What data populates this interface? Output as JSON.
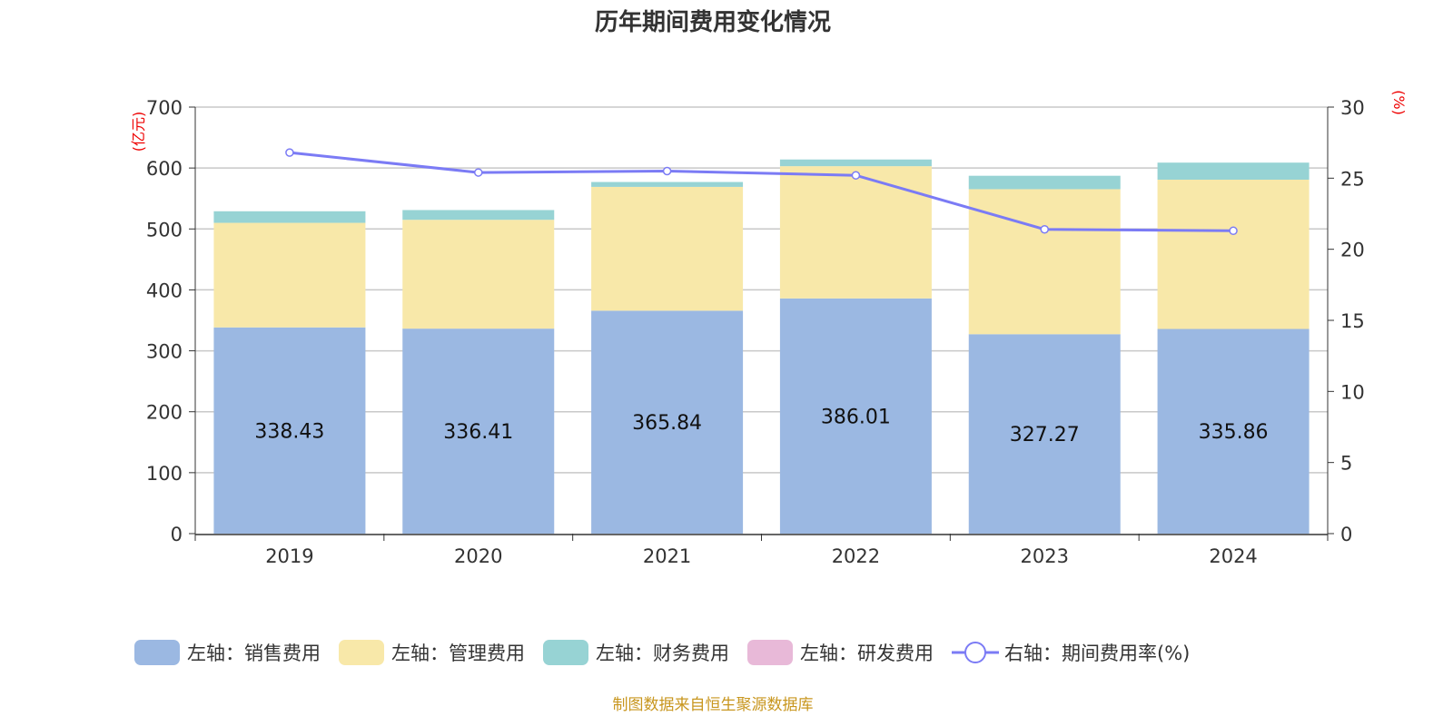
{
  "chart_data": {
    "type": "bar",
    "title": "历年期间费用变化情况",
    "categories": [
      "2019",
      "2020",
      "2021",
      "2022",
      "2023",
      "2024"
    ],
    "left_axis": {
      "unit_label": "(亿元)",
      "ylim": [
        0,
        700
      ],
      "ticks": [
        0,
        100,
        200,
        300,
        400,
        500,
        600,
        700
      ]
    },
    "right_axis": {
      "unit_label": "(%)",
      "ylim": [
        0,
        30
      ],
      "ticks": [
        0,
        5,
        10,
        15,
        20,
        25,
        30
      ]
    },
    "stacked": true,
    "grid": true,
    "legend_position": "bottom",
    "series": [
      {
        "name": "左轴：销售费用",
        "axis": "left",
        "type": "bar",
        "color": "#9bb8e2",
        "values": [
          338.43,
          336.41,
          365.84,
          386.01,
          327.27,
          335.86
        ],
        "labels": [
          "338.43",
          "336.41",
          "365.84",
          "386.01",
          "327.27",
          "335.86"
        ]
      },
      {
        "name": "左轴：管理费用",
        "axis": "left",
        "type": "bar",
        "color": "#f8e8a9",
        "values": [
          171.6,
          178.6,
          203.2,
          217.0,
          238.0,
          245.0
        ]
      },
      {
        "name": "左轴：财务费用",
        "axis": "left",
        "type": "bar",
        "color": "#97d3d4",
        "values": [
          19.0,
          16.0,
          8.0,
          11.0,
          22.0,
          28.0
        ]
      },
      {
        "name": "左轴：研发费用",
        "axis": "left",
        "type": "bar",
        "color": "#e8b9d8",
        "values": [
          0,
          0,
          0,
          0,
          0,
          0
        ]
      },
      {
        "name": "右轴：期间费用率(%)",
        "axis": "right",
        "type": "line",
        "color": "#7b7bf5",
        "values": [
          26.8,
          25.4,
          25.5,
          25.2,
          21.4,
          21.3
        ]
      }
    ]
  },
  "source": "制图数据来自恒生聚源数据库"
}
